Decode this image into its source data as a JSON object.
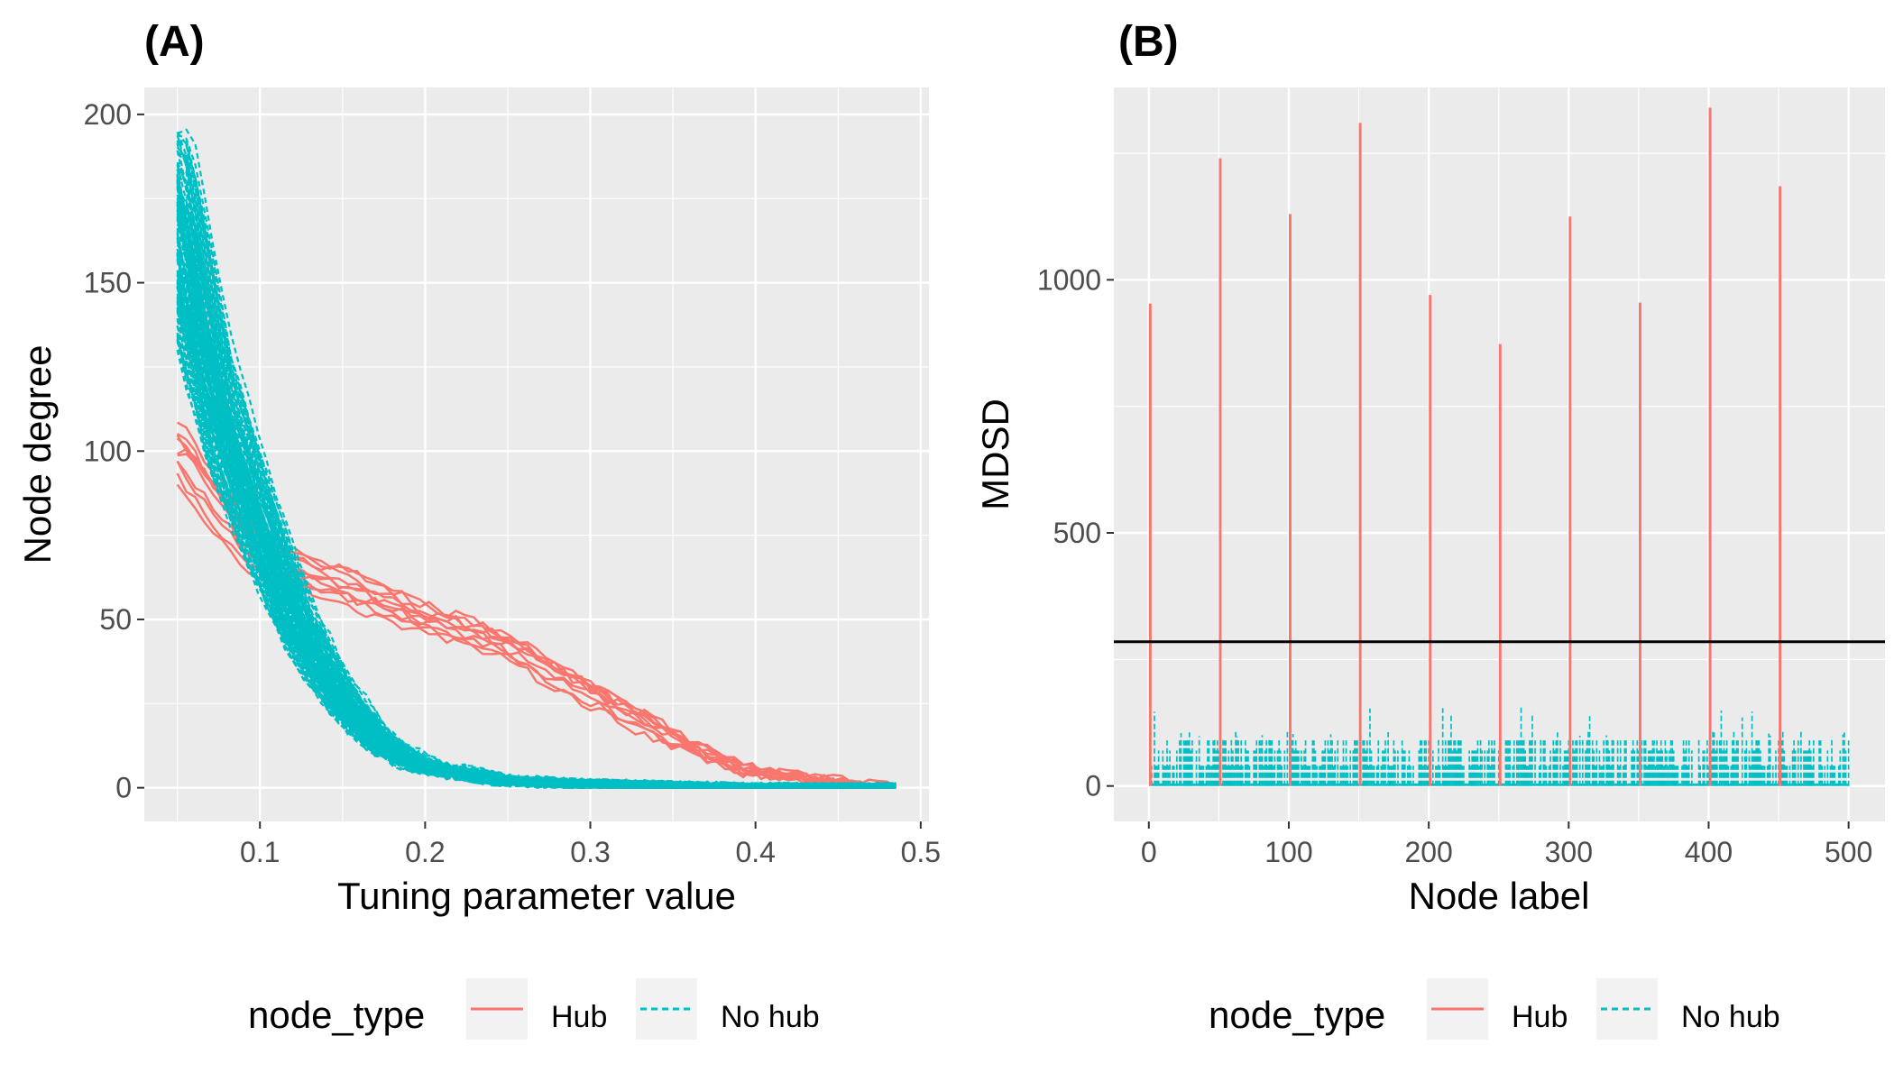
{
  "colors": {
    "hub": "#F8766D",
    "no_hub": "#00BFC4",
    "panel_bg": "#EBEBEB",
    "grid": "#FFFFFF",
    "threshold": "#000000"
  },
  "chart_data": [
    {
      "type": "line",
      "title": "(A)",
      "xlabel": "Tuning parameter value",
      "ylabel": "Node degree",
      "xlim": [
        0.03,
        0.505
      ],
      "ylim": [
        -10,
        208
      ],
      "xticks": [
        0.1,
        0.2,
        0.3,
        0.4,
        0.5
      ],
      "xtick_labels": [
        "0.1",
        "0.2",
        "0.3",
        "0.4",
        "0.5"
      ],
      "yticks": [
        0,
        50,
        100,
        150,
        200
      ],
      "ytick_labels": [
        "0",
        "50",
        "100",
        "150",
        "200"
      ],
      "grid": true,
      "legend": {
        "title": "node_type",
        "position": "bottom",
        "entries": [
          "Hub",
          "No hub"
        ]
      },
      "series": [
        {
          "name": "Hub",
          "style": "solid",
          "color": "#F8766D",
          "curves": 10,
          "x": [
            0.05,
            0.075,
            0.1,
            0.125,
            0.15,
            0.2,
            0.25,
            0.3,
            0.35,
            0.4,
            0.45,
            0.485
          ],
          "y": [
            105,
            88,
            72,
            66,
            62,
            52,
            44,
            30,
            16,
            5,
            2,
            0
          ]
        },
        {
          "name": "No hub",
          "style": "dashed",
          "color": "#00BFC4",
          "curves": 490,
          "x": [
            0.05,
            0.075,
            0.1,
            0.125,
            0.15,
            0.175,
            0.2,
            0.25,
            0.3,
            0.4,
            0.485
          ],
          "y": [
            165,
            110,
            75,
            45,
            25,
            12,
            6,
            2,
            1,
            0,
            0
          ]
        }
      ]
    },
    {
      "type": "bar",
      "title": "(B)",
      "xlabel": "Node label",
      "ylabel": "MDSD",
      "xlim": [
        -25,
        526
      ],
      "ylim": [
        -70,
        1380
      ],
      "xticks": [
        0,
        100,
        200,
        300,
        400,
        500
      ],
      "xtick_labels": [
        "0",
        "100",
        "200",
        "300",
        "400",
        "500"
      ],
      "yticks": [
        0,
        500,
        1000
      ],
      "ytick_labels": [
        "0",
        "500",
        "1000"
      ],
      "grid": true,
      "threshold": 285,
      "legend": {
        "title": "node_type",
        "position": "bottom",
        "entries": [
          "Hub",
          "No hub"
        ]
      },
      "hub_nodes": [
        1,
        51,
        101,
        151,
        201,
        251,
        301,
        351,
        401,
        451
      ],
      "hub_values": [
        953,
        1240,
        1130,
        1310,
        970,
        873,
        1125,
        955,
        1340,
        1185
      ],
      "no_hub_range": [
        1,
        500
      ],
      "no_hub_typical_values": [
        5,
        40,
        70,
        90
      ],
      "no_hub_max": 160
    }
  ]
}
